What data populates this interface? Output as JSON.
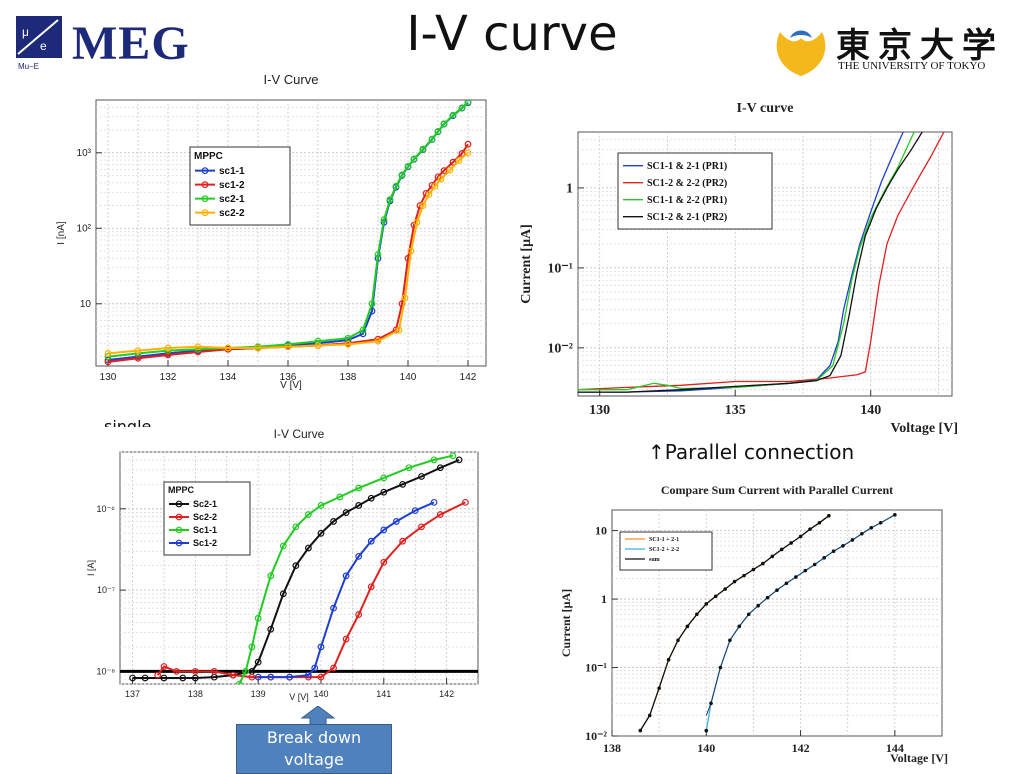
{
  "slide": {
    "title": "I-V curve",
    "parallel_caption": "↑Parallel connection",
    "single_caption": "single",
    "breakdown_label": "Break down voltage"
  },
  "logos": {
    "left_name": "MEG",
    "left_sub": "Mu–E",
    "right_name_jp": "東京大学",
    "right_name_en": "THE UNIVERSITY OF TOKYO",
    "colors": {
      "meg_blue": "#1d2a7a",
      "tokyo_yellow": "#f5b81c"
    }
  },
  "chart_data": [
    {
      "type": "line",
      "title": "I-V Curve",
      "xlabel": "V [V]",
      "ylabel": "I [nA]",
      "xlim": [
        129.6,
        142.6
      ],
      "ylim": [
        1.5,
        5000
      ],
      "yscale": "log",
      "grid": true,
      "xticks": [
        130,
        132,
        134,
        136,
        138,
        140,
        142
      ],
      "yticks": [
        {
          "v": 10,
          "label": "10"
        },
        {
          "v": 100,
          "label": "10²"
        },
        {
          "v": 1000,
          "label": "10³"
        }
      ],
      "legend": {
        "title": "MPPC",
        "placement": "top-left"
      },
      "series": [
        {
          "name": "sc1-1",
          "color": "#1f3fcf",
          "x": [
            130,
            131,
            132,
            133,
            134,
            135,
            136,
            137,
            138,
            138.5,
            138.8,
            139,
            139.2,
            139.4,
            139.6,
            139.8,
            140,
            140.2,
            140.5,
            140.8,
            141,
            141.2,
            141.5,
            141.8,
            142
          ],
          "y": [
            1.8,
            2.0,
            2.2,
            2.4,
            2.5,
            2.6,
            2.8,
            3.0,
            3.3,
            4,
            8,
            40,
            120,
            230,
            350,
            500,
            650,
            820,
            1100,
            1500,
            1900,
            2400,
            3100,
            3900,
            4600
          ]
        },
        {
          "name": "sc1-2",
          "color": "#e0201e",
          "x": [
            130,
            131,
            132,
            133,
            134,
            135,
            136,
            137,
            138,
            139,
            139.6,
            139.8,
            140,
            140.2,
            140.4,
            140.6,
            140.8,
            141,
            141.2,
            141.5,
            141.8,
            142
          ],
          "y": [
            1.7,
            1.9,
            2.1,
            2.3,
            2.5,
            2.6,
            2.7,
            2.8,
            3.0,
            3.4,
            4.5,
            10,
            40,
            110,
            200,
            290,
            370,
            480,
            580,
            750,
            980,
            1300
          ]
        },
        {
          "name": "sc2-1",
          "color": "#22cc22",
          "x": [
            130,
            131,
            132,
            133,
            134,
            135,
            136,
            137,
            138,
            138.5,
            138.8,
            139,
            139.2,
            139.4,
            139.6,
            139.8,
            140,
            140.2,
            140.5,
            140.8,
            141,
            141.2,
            141.5,
            141.8,
            142
          ],
          "y": [
            2.0,
            2.2,
            2.4,
            2.5,
            2.6,
            2.7,
            2.9,
            3.2,
            3.5,
            4.5,
            10,
            45,
            130,
            240,
            360,
            510,
            660,
            830,
            1120,
            1520,
            1920,
            2420,
            3150,
            3950,
            4700
          ]
        },
        {
          "name": "sc2-2",
          "color": "#ffb000",
          "x": [
            130,
            131,
            132,
            133,
            134,
            135,
            136,
            137,
            138,
            139,
            139.7,
            139.9,
            140.1,
            140.3,
            140.5,
            140.7,
            140.9,
            141.1,
            141.4,
            141.7,
            142
          ],
          "y": [
            2.2,
            2.4,
            2.6,
            2.7,
            2.6,
            2.6,
            2.7,
            2.8,
            2.9,
            3.2,
            4.5,
            12,
            50,
            120,
            200,
            280,
            360,
            450,
            590,
            790,
            1000
          ]
        }
      ]
    },
    {
      "type": "line",
      "title": "I-V curve",
      "xlabel": "Voltage [V]",
      "ylabel": "Current [μA]",
      "xlim": [
        129.2,
        143
      ],
      "ylim": [
        0.0025,
        5
      ],
      "yscale": "log",
      "grid": true,
      "xticks": [
        130,
        135,
        140
      ],
      "yticks": [
        {
          "v": 0.01,
          "label": "10⁻²"
        },
        {
          "v": 0.1,
          "label": "10⁻¹"
        },
        {
          "v": 1,
          "label": "1"
        }
      ],
      "legend": {
        "title": "",
        "placement": "top-left"
      },
      "series": [
        {
          "name": "SC1-1 & 2-1 (PR1)",
          "color": "#1f3fcf",
          "x": [
            129.2,
            131,
            133,
            135,
            137,
            138,
            138.5,
            138.8,
            139,
            139.3,
            139.6,
            140,
            140.4,
            140.8,
            141.2
          ],
          "y": [
            0.0028,
            0.0028,
            0.0029,
            0.0032,
            0.0036,
            0.004,
            0.006,
            0.012,
            0.03,
            0.08,
            0.2,
            0.5,
            1.2,
            2.5,
            5
          ]
        },
        {
          "name": "SC1-2 & 2-2 (PR2)",
          "color": "#e0201e",
          "x": [
            129.2,
            131,
            133,
            135,
            137,
            138.5,
            139.5,
            139.8,
            140,
            140.3,
            140.6,
            141,
            141.4,
            141.8,
            142.2,
            142.7
          ],
          "y": [
            0.003,
            0.0032,
            0.0034,
            0.0038,
            0.0038,
            0.0042,
            0.0046,
            0.005,
            0.012,
            0.06,
            0.2,
            0.45,
            0.8,
            1.4,
            2.4,
            5
          ]
        },
        {
          "name": "SC1-1 & 2-2 (PR1)",
          "color": "#22cc22",
          "x": [
            129.2,
            131,
            132,
            132.5,
            133,
            135,
            137,
            138,
            138.6,
            139,
            139.3,
            139.6,
            140,
            140.5,
            141,
            141.6
          ],
          "y": [
            0.003,
            0.003,
            0.0036,
            0.0034,
            0.0031,
            0.0032,
            0.0036,
            0.0039,
            0.006,
            0.02,
            0.07,
            0.18,
            0.42,
            0.9,
            1.8,
            5
          ]
        },
        {
          "name": "SC1-2 & 2-1 (PR2)",
          "color": "#111111",
          "x": [
            129.2,
            131,
            133,
            135,
            137,
            138,
            138.5,
            138.9,
            139.2,
            139.5,
            139.8,
            140.2,
            140.6,
            141,
            141.5,
            141.9
          ],
          "y": [
            0.0028,
            0.0028,
            0.003,
            0.0033,
            0.0036,
            0.0039,
            0.0045,
            0.008,
            0.025,
            0.09,
            0.25,
            0.55,
            1.0,
            1.7,
            3.0,
            5
          ]
        }
      ]
    },
    {
      "type": "line",
      "title": "I-V Curve",
      "xlabel": "V [V]",
      "ylabel": "I [A]",
      "xlim": [
        136.8,
        142.5
      ],
      "ylim": [
        7e-09,
        5e-06
      ],
      "yscale": "log",
      "grid": true,
      "xticks": [
        137,
        138,
        139,
        140,
        141,
        142
      ],
      "yticks": [
        {
          "v": 1e-08,
          "label": "10⁻⁸"
        },
        {
          "v": 1e-07,
          "label": "10⁻⁷"
        },
        {
          "v": 1e-06,
          "label": "10⁻⁶"
        }
      ],
      "legend": {
        "title": "MPPC",
        "placement": "top-left"
      },
      "series": [
        {
          "name": "Sc2-1",
          "color": "#111111",
          "x": [
            137,
            137.2,
            137.5,
            137.8,
            138,
            138.3,
            138.6,
            138.9,
            139,
            139.2,
            139.4,
            139.6,
            139.8,
            140,
            140.2,
            140.4,
            140.6,
            140.8,
            141,
            141.3,
            141.6,
            141.9,
            142.2
          ],
          "y": [
            8.3e-09,
            8.3e-09,
            8.3e-09,
            8.3e-09,
            8.3e-09,
            8.5e-09,
            9e-09,
            1e-08,
            1.3e-08,
            3.3e-08,
            9e-08,
            2e-07,
            3.3e-07,
            5e-07,
            7e-07,
            9e-07,
            1.1e-06,
            1.35e-06,
            1.6e-06,
            2e-06,
            2.5e-06,
            3.2e-06,
            4e-06
          ]
        },
        {
          "name": "Sc2-2",
          "color": "#e0201e",
          "x": [
            137.4,
            137.5,
            137.7,
            138,
            138.3,
            138.6,
            138.9,
            139.2,
            139.5,
            139.8,
            140,
            140.2,
            140.4,
            140.6,
            140.8,
            141,
            141.3,
            141.6,
            141.9,
            142.3
          ],
          "y": [
            9e-09,
            1.15e-08,
            1e-08,
            1e-08,
            1e-08,
            9e-09,
            8.5e-09,
            8.5e-09,
            8.5e-09,
            8.5e-09,
            8.5e-09,
            1.1e-08,
            2.5e-08,
            5e-08,
            1.1e-07,
            2.2e-07,
            4e-07,
            6e-07,
            8.5e-07,
            1.2e-06
          ]
        },
        {
          "name": "Sc1-1",
          "color": "#22cc22",
          "x": [
            138.7,
            138.8,
            138.9,
            139,
            139.2,
            139.4,
            139.6,
            139.8,
            140,
            140.3,
            140.6,
            141,
            141.4,
            141.8,
            142.1
          ],
          "y": [
            7e-09,
            1e-08,
            2e-08,
            4.5e-08,
            1.5e-07,
            3.5e-07,
            6e-07,
            8.5e-07,
            1.1e-06,
            1.4e-06,
            1.8e-06,
            2.4e-06,
            3.2e-06,
            4e-06,
            4.5e-06
          ]
        },
        {
          "name": "Sc1-2",
          "color": "#1f3fcf",
          "x": [
            139,
            139.2,
            139.5,
            139.8,
            139.9,
            140,
            140.2,
            140.4,
            140.6,
            140.8,
            141,
            141.2,
            141.5,
            141.8
          ],
          "y": [
            8.5e-09,
            8.5e-09,
            8.5e-09,
            9e-09,
            1.1e-08,
            2e-08,
            6e-08,
            1.5e-07,
            2.6e-07,
            4e-07,
            5.5e-07,
            7e-07,
            9.5e-07,
            1.2e-06
          ]
        }
      ],
      "reference_line": {
        "y": 1e-08,
        "color": "#000000"
      }
    },
    {
      "type": "line",
      "title": "Compare Sum Current with Parallel Current",
      "xlabel": "Voltage [V]",
      "ylabel": "Current [μA]",
      "xlim": [
        138,
        145
      ],
      "ylim": [
        0.01,
        20
      ],
      "yscale": "log",
      "grid": true,
      "xticks": [
        138,
        140,
        142,
        144
      ],
      "yticks": [
        {
          "v": 0.01,
          "label": "10⁻²"
        },
        {
          "v": 0.1,
          "label": "10⁻¹"
        },
        {
          "v": 1,
          "label": "1"
        },
        {
          "v": 10,
          "label": "10"
        }
      ],
      "legend": {
        "title": "",
        "placement": "top-left"
      },
      "series": [
        {
          "name": "SC1-1 + 2-1",
          "color": "#f0901e",
          "x": [
            138.6,
            138.8,
            139,
            139.2,
            139.4,
            139.6,
            139.8,
            140,
            140.2,
            140.4,
            140.6,
            140.8,
            141,
            141.2,
            141.4,
            141.6,
            141.8,
            142,
            142.2,
            142.4,
            142.6
          ],
          "y": [
            0.012,
            0.02,
            0.05,
            0.13,
            0.25,
            0.4,
            0.6,
            0.85,
            1.1,
            1.4,
            1.8,
            2.2,
            2.7,
            3.3,
            4.2,
            5.3,
            6.6,
            8.2,
            10.5,
            13,
            16.5
          ]
        },
        {
          "name": "SC1-2 + 2-2",
          "color": "#3ab0e0",
          "x": [
            140,
            140.1,
            140.3,
            140.5,
            140.7,
            140.9,
            141.1,
            141.3,
            141.5,
            141.7,
            141.9,
            142.1,
            142.3,
            142.5,
            142.7,
            142.9,
            143.1,
            143.3,
            143.5,
            143.7,
            144
          ],
          "y": [
            0.012,
            0.03,
            0.1,
            0.25,
            0.4,
            0.6,
            0.8,
            1.05,
            1.35,
            1.7,
            2.1,
            2.6,
            3.2,
            4,
            5,
            6,
            7.3,
            9,
            11,
            13,
            17
          ]
        },
        {
          "name": "sum",
          "color": "#111111",
          "x": [
            138.6,
            138.8,
            139,
            139.2,
            139.4,
            139.6,
            139.8,
            140,
            140.2,
            140.4,
            140.6,
            140.8,
            141,
            141.2,
            141.4,
            141.6,
            141.8,
            142,
            142.2,
            142.4,
            142.6
          ],
          "y": [
            0.012,
            0.02,
            0.05,
            0.13,
            0.25,
            0.4,
            0.6,
            0.85,
            1.1,
            1.4,
            1.8,
            2.2,
            2.7,
            3.3,
            4.2,
            5.3,
            6.6,
            8.2,
            10.5,
            13,
            16.5
          ]
        }
      ],
      "overlay": {
        "x": [
          140,
          140.1,
          140.3,
          140.5,
          140.7,
          140.9,
          141.1,
          141.3,
          141.5,
          141.7,
          141.9,
          142.1,
          142.3,
          142.5,
          142.7,
          142.9,
          143.1,
          143.3,
          143.5,
          143.7,
          144
        ],
        "y": [
          0.02,
          0.03,
          0.1,
          0.25,
          0.4,
          0.6,
          0.8,
          1.05,
          1.35,
          1.7,
          2.1,
          2.6,
          3.2,
          4,
          5,
          6,
          7.3,
          9,
          11,
          13,
          17
        ],
        "color": "#1a3a6a"
      }
    }
  ]
}
